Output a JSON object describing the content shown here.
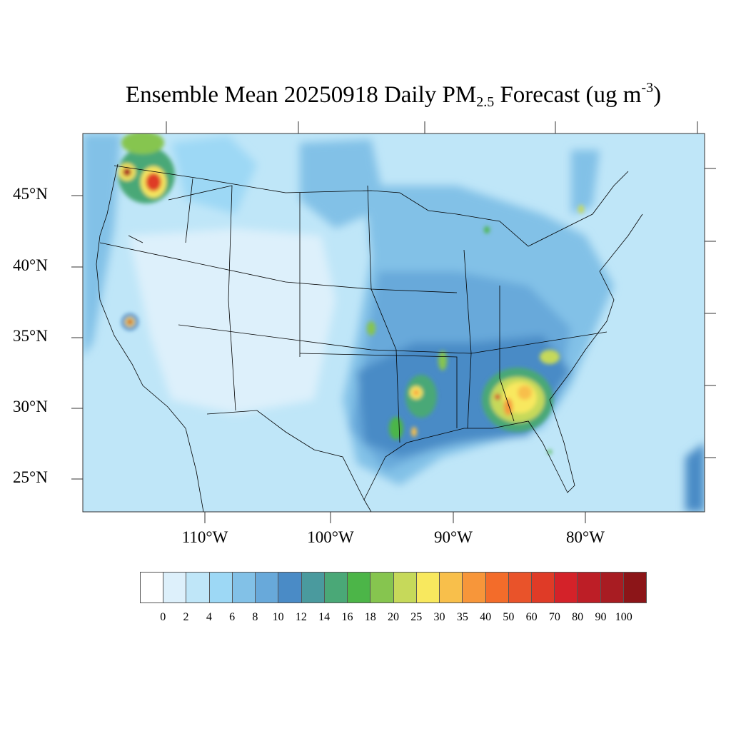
{
  "title": {
    "main": "Ensemble Mean 20250918 Daily PM",
    "sub": "2.5",
    "units_pre": " Forecast (ug m",
    "units_sup": "-3",
    "units_post": ")"
  },
  "lat_labels": [
    "45°N",
    "40°N",
    "35°N",
    "30°N",
    "25°N"
  ],
  "lon_labels": [
    "110°W",
    "100°W",
    "90°W",
    "80°W"
  ],
  "colorbar": {
    "labels": [
      "0",
      "2",
      "4",
      "6",
      "8",
      "10",
      "12",
      "14",
      "16",
      "18",
      "20",
      "25",
      "30",
      "35",
      "40",
      "50",
      "60",
      "70",
      "80",
      "90",
      "100"
    ],
    "colors": [
      "#ffffff",
      "#ddf0fb",
      "#bfe6f8",
      "#9dd8f5",
      "#82c1e7",
      "#68a9da",
      "#4a8bc6",
      "#4a9a9e",
      "#4aa877",
      "#4cb548",
      "#86c54f",
      "#c6d95a",
      "#f8e85e",
      "#f8bf4b",
      "#f7963a",
      "#f36c2a",
      "#e9532a",
      "#df3b27",
      "#d42229",
      "#bd1e26",
      "#a81c22",
      "#8c1518"
    ]
  }
}
